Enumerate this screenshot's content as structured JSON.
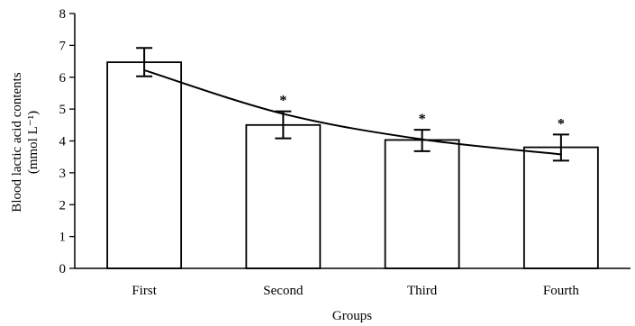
{
  "chart_data": {
    "type": "bar",
    "categories": [
      "First",
      "Second",
      "Third",
      "Fourth"
    ],
    "values": [
      6.47,
      4.5,
      4.03,
      3.8
    ],
    "error_bars": {
      "upper": [
        6.92,
        4.93,
        4.35,
        4.2
      ],
      "lower": [
        6.03,
        4.08,
        3.68,
        3.38
      ]
    },
    "significance_marks": [
      "",
      "*",
      "*",
      "*"
    ],
    "trend_line": {
      "type": "line",
      "x": [
        1,
        2,
        3,
        4
      ],
      "y": [
        6.22,
        4.85,
        4.05,
        3.58
      ]
    },
    "xlabel": "Groups",
    "ylabel_line1": "Blood lactic acid contents",
    "ylabel_line2": "(mmol L⁻¹)",
    "ylim": [
      0,
      8
    ],
    "yticks": [
      "0",
      "1",
      "2",
      "3",
      "4",
      "5",
      "6",
      "7",
      "8"
    ],
    "grid": false,
    "legend": "none",
    "colors": {
      "bar_fill": "#ffffff",
      "stroke": "#000000"
    }
  }
}
